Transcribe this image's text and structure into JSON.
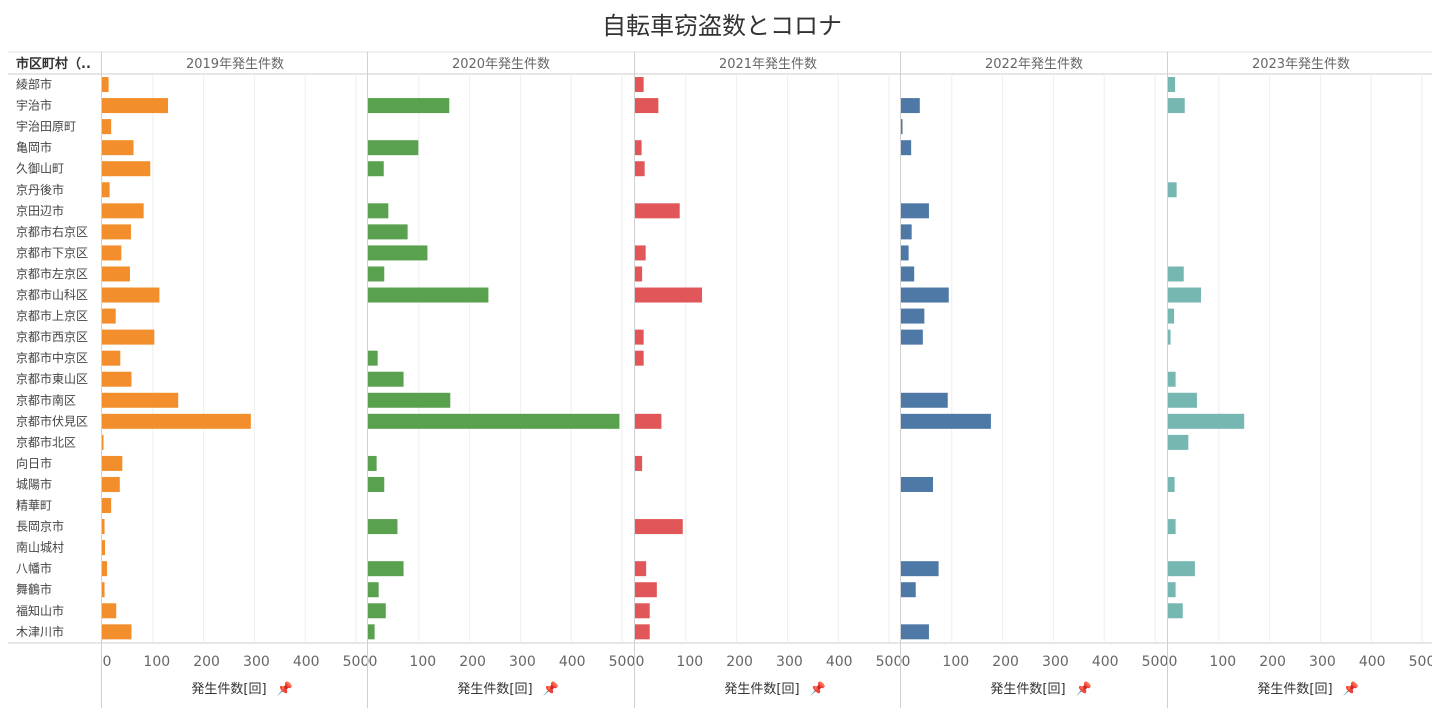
{
  "title": "自転車窃盗数とコロナ",
  "row_header": "市区町村（..",
  "chart_data": {
    "type": "bar",
    "orientation": "horizontal",
    "title": "自転車窃盗数とコロナ",
    "categories": [
      "綾部市",
      "宇治市",
      "宇治田原町",
      "亀岡市",
      "久御山町",
      "京丹後市",
      "京田辺市",
      "京都市右京区",
      "京都市下京区",
      "京都市左京区",
      "京都市山科区",
      "京都市上京区",
      "京都市西京区",
      "京都市中京区",
      "京都市東山区",
      "京都市南区",
      "京都市伏見区",
      "京都市北区",
      "向日市",
      "城陽市",
      "精華町",
      "長岡京市",
      "南山城村",
      "八幡市",
      "舞鶴市",
      "福知山市",
      "木津川市"
    ],
    "xlim": [
      0,
      500
    ],
    "ticks": [
      0,
      100,
      200,
      300,
      400,
      500
    ],
    "grid": true,
    "series": [
      {
        "name": "2019年発生件数",
        "axis_title": "発生件数[回]",
        "color": "#f28e2b",
        "values": [
          13,
          130,
          18,
          62,
          95,
          15,
          82,
          57,
          38,
          55,
          113,
          27,
          103,
          36,
          58,
          150,
          293,
          3,
          40,
          35,
          18,
          5,
          6,
          10,
          5,
          28,
          58
        ]
      },
      {
        "name": "2020年発生件数",
        "axis_title": "発生件数[回]",
        "color": "#59a14f",
        "values": [
          null,
          160,
          null,
          99,
          31,
          null,
          40,
          78,
          117,
          32,
          237,
          null,
          null,
          19,
          70,
          162,
          495,
          null,
          17,
          32,
          null,
          58,
          null,
          70,
          21,
          35,
          13
        ]
      },
      {
        "name": "2021年発生件数",
        "axis_title": "発生件数[回]",
        "color": "#e15759",
        "values": [
          17,
          46,
          null,
          13,
          19,
          null,
          88,
          null,
          21,
          14,
          132,
          null,
          17,
          17,
          null,
          null,
          52,
          null,
          14,
          null,
          null,
          94,
          null,
          22,
          43,
          29,
          29
        ]
      },
      {
        "name": "2022年発生件数",
        "axis_title": "発生件数[回]",
        "color": "#4e79a7",
        "values": [
          null,
          37,
          3,
          20,
          null,
          null,
          55,
          21,
          15,
          26,
          94,
          46,
          43,
          null,
          null,
          92,
          177,
          null,
          null,
          63,
          null,
          null,
          null,
          74,
          29,
          null,
          55
        ]
      },
      {
        "name": "2023年発生件数",
        "axis_title": "発生件数[回]",
        "color": "#76b7b2",
        "values": [
          14,
          33,
          null,
          null,
          null,
          17,
          null,
          null,
          null,
          31,
          65,
          12,
          5,
          null,
          15,
          57,
          150,
          40,
          null,
          13,
          null,
          15,
          null,
          53,
          15,
          29,
          null
        ]
      }
    ]
  }
}
